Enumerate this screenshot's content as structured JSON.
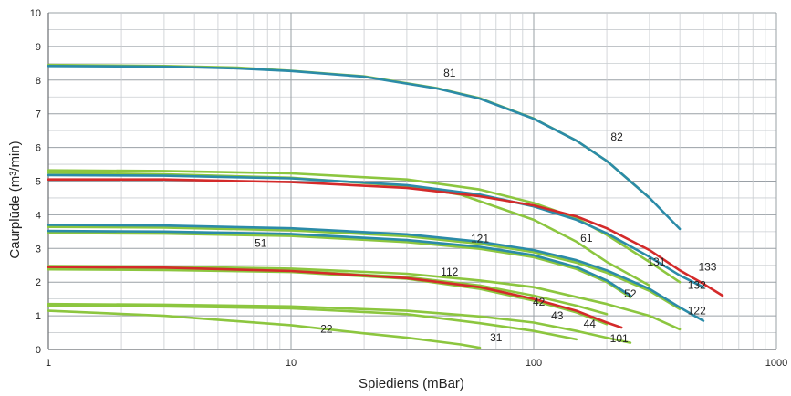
{
  "chart_data": {
    "type": "line",
    "xlabel": "Spiediens (mBar)",
    "ylabel": "Caurplūde (m³/min)",
    "xscale": "log",
    "xlim": [
      1,
      1000
    ],
    "ylim": [
      0,
      10
    ],
    "xticks": [
      "1",
      "10",
      "100",
      "1000"
    ],
    "yticks": [
      "0",
      "1",
      "2",
      "3",
      "4",
      "5",
      "6",
      "7",
      "8",
      "9",
      "10"
    ],
    "grid": true,
    "colors": {
      "green": "#8cc63f",
      "blue": "#2b8ba8",
      "red": "#d42a2a"
    },
    "series": [
      {
        "name": "81",
        "color": "blue",
        "label_at": [
          45,
          8.1
        ],
        "points": [
          [
            1,
            8.42
          ],
          [
            3,
            8.4
          ],
          [
            6,
            8.35
          ],
          [
            10,
            8.27
          ],
          [
            20,
            8.1
          ],
          [
            40,
            7.75
          ],
          [
            60,
            7.45
          ],
          [
            100,
            6.85
          ],
          [
            150,
            6.2
          ],
          [
            200,
            5.6
          ],
          [
            300,
            4.5
          ],
          [
            400,
            3.58
          ]
        ]
      },
      {
        "name": "82",
        "color": "green",
        "label_at": [
          220,
          6.2
        ],
        "points": [
          [
            1,
            8.45
          ],
          [
            3,
            8.42
          ],
          [
            6,
            8.37
          ],
          [
            10,
            8.28
          ],
          [
            20,
            8.11
          ],
          [
            40,
            7.76
          ],
          [
            60,
            7.46
          ],
          [
            100,
            6.86
          ],
          [
            150,
            6.2
          ],
          [
            200,
            5.6
          ],
          [
            300,
            4.5
          ]
        ]
      },
      {
        "name": "131",
        "color": "green",
        "label_at": [
          320,
          2.5
        ],
        "points": [
          [
            1,
            5.32
          ],
          [
            3,
            5.3
          ],
          [
            10,
            5.23
          ],
          [
            30,
            5.05
          ],
          [
            60,
            4.75
          ],
          [
            100,
            4.35
          ],
          [
            150,
            3.9
          ],
          [
            200,
            3.4
          ],
          [
            300,
            2.6
          ],
          [
            400,
            2.0
          ]
        ]
      },
      {
        "name": "61",
        "color": "green",
        "label_at": [
          165,
          3.2
        ],
        "points": [
          [
            1,
            5.25
          ],
          [
            3,
            5.2
          ],
          [
            10,
            5.1
          ],
          [
            30,
            4.85
          ],
          [
            50,
            4.6
          ],
          [
            100,
            3.85
          ],
          [
            150,
            3.2
          ],
          [
            200,
            2.6
          ],
          [
            300,
            1.9
          ]
        ]
      },
      {
        "name": "133",
        "color": "red",
        "label_at": [
          520,
          2.35
        ],
        "points": [
          [
            1,
            5.05
          ],
          [
            3,
            5.05
          ],
          [
            10,
            4.97
          ],
          [
            30,
            4.8
          ],
          [
            60,
            4.55
          ],
          [
            100,
            4.28
          ],
          [
            150,
            3.95
          ],
          [
            200,
            3.6
          ],
          [
            300,
            2.95
          ],
          [
            400,
            2.35
          ],
          [
            500,
            1.95
          ],
          [
            600,
            1.6
          ]
        ]
      },
      {
        "name": "132",
        "color": "blue",
        "label_at": [
          470,
          1.8
        ],
        "points": [
          [
            1,
            5.18
          ],
          [
            3,
            5.16
          ],
          [
            10,
            5.08
          ],
          [
            30,
            4.88
          ],
          [
            60,
            4.6
          ],
          [
            100,
            4.25
          ],
          [
            150,
            3.85
          ],
          [
            200,
            3.45
          ],
          [
            300,
            2.75
          ],
          [
            400,
            2.2
          ],
          [
            500,
            1.85
          ]
        ]
      },
      {
        "name": "121",
        "color": "blue",
        "label_at": [
          60,
          3.18
        ],
        "points": [
          [
            1,
            3.7
          ],
          [
            3,
            3.68
          ],
          [
            10,
            3.6
          ],
          [
            30,
            3.42
          ],
          [
            60,
            3.2
          ],
          [
            100,
            2.95
          ],
          [
            150,
            2.65
          ],
          [
            200,
            2.35
          ],
          [
            300,
            1.8
          ],
          [
            400,
            1.25
          ],
          [
            500,
            0.85
          ]
        ]
      },
      {
        "name": "122",
        "color": "green",
        "label_at": [
          470,
          1.05
        ],
        "points": [
          [
            1,
            3.64
          ],
          [
            3,
            3.62
          ],
          [
            10,
            3.54
          ],
          [
            30,
            3.36
          ],
          [
            60,
            3.14
          ],
          [
            100,
            2.89
          ],
          [
            150,
            2.58
          ],
          [
            200,
            2.28
          ],
          [
            300,
            1.74
          ],
          [
            400,
            1.2
          ]
        ]
      },
      {
        "name": "51",
        "color": "blue",
        "label_at": [
          7.5,
          3.05
        ],
        "points": [
          [
            1,
            3.52
          ],
          [
            3,
            3.5
          ],
          [
            10,
            3.43
          ],
          [
            30,
            3.25
          ],
          [
            60,
            3.05
          ],
          [
            100,
            2.8
          ],
          [
            150,
            2.45
          ],
          [
            200,
            2.05
          ],
          [
            250,
            1.6
          ]
        ]
      },
      {
        "name": "52",
        "color": "green",
        "label_at": [
          250,
          1.55
        ],
        "points": [
          [
            1,
            3.46
          ],
          [
            3,
            3.44
          ],
          [
            10,
            3.37
          ],
          [
            30,
            3.19
          ],
          [
            60,
            2.99
          ],
          [
            100,
            2.74
          ],
          [
            150,
            2.39
          ],
          [
            200,
            2.0
          ],
          [
            250,
            1.55
          ]
        ]
      },
      {
        "name": "112",
        "color": "green",
        "label_at": [
          45,
          2.2
        ],
        "points": [
          [
            1,
            2.48
          ],
          [
            3,
            2.46
          ],
          [
            10,
            2.4
          ],
          [
            30,
            2.25
          ],
          [
            60,
            2.05
          ],
          [
            100,
            1.85
          ],
          [
            200,
            1.35
          ],
          [
            300,
            1.0
          ],
          [
            400,
            0.6
          ]
        ]
      },
      {
        "name": "42",
        "color": "green",
        "label_at": [
          105,
          1.3
        ],
        "points": [
          [
            1,
            2.42
          ],
          [
            3,
            2.4
          ],
          [
            10,
            2.34
          ],
          [
            30,
            2.15
          ],
          [
            60,
            1.9
          ],
          [
            100,
            1.6
          ],
          [
            150,
            1.3
          ],
          [
            200,
            1.05
          ]
        ]
      },
      {
        "name": "43",
        "color": "red",
        "label_at": [
          125,
          0.9
        ],
        "points": [
          [
            1,
            2.45
          ],
          [
            3,
            2.43
          ],
          [
            10,
            2.33
          ],
          [
            30,
            2.12
          ],
          [
            60,
            1.85
          ],
          [
            100,
            1.5
          ],
          [
            150,
            1.15
          ],
          [
            200,
            0.8
          ],
          [
            230,
            0.65
          ]
        ]
      },
      {
        "name": "44",
        "color": "green",
        "label_at": [
          170,
          0.65
        ],
        "points": [
          [
            1,
            2.38
          ],
          [
            3,
            2.36
          ],
          [
            10,
            2.3
          ],
          [
            30,
            2.1
          ],
          [
            60,
            1.8
          ],
          [
            100,
            1.45
          ],
          [
            150,
            1.1
          ],
          [
            200,
            0.75
          ]
        ]
      },
      {
        "name": "101",
        "color": "green",
        "label_at": [
          225,
          0.22
        ],
        "points": [
          [
            1,
            1.35
          ],
          [
            3,
            1.33
          ],
          [
            10,
            1.28
          ],
          [
            30,
            1.15
          ],
          [
            60,
            0.98
          ],
          [
            100,
            0.8
          ],
          [
            150,
            0.55
          ],
          [
            200,
            0.35
          ],
          [
            250,
            0.2
          ]
        ]
      },
      {
        "name": "31",
        "color": "green",
        "label_at": [
          70,
          0.25
        ],
        "points": [
          [
            1,
            1.3
          ],
          [
            3,
            1.28
          ],
          [
            10,
            1.22
          ],
          [
            30,
            1.05
          ],
          [
            60,
            0.78
          ],
          [
            100,
            0.55
          ],
          [
            150,
            0.3
          ]
        ]
      },
      {
        "name": "22",
        "color": "green",
        "label_at": [
          14,
          0.5
        ],
        "points": [
          [
            1,
            1.15
          ],
          [
            3,
            1.0
          ],
          [
            10,
            0.72
          ],
          [
            20,
            0.48
          ],
          [
            30,
            0.35
          ],
          [
            50,
            0.15
          ],
          [
            60,
            0.05
          ]
        ]
      }
    ]
  }
}
